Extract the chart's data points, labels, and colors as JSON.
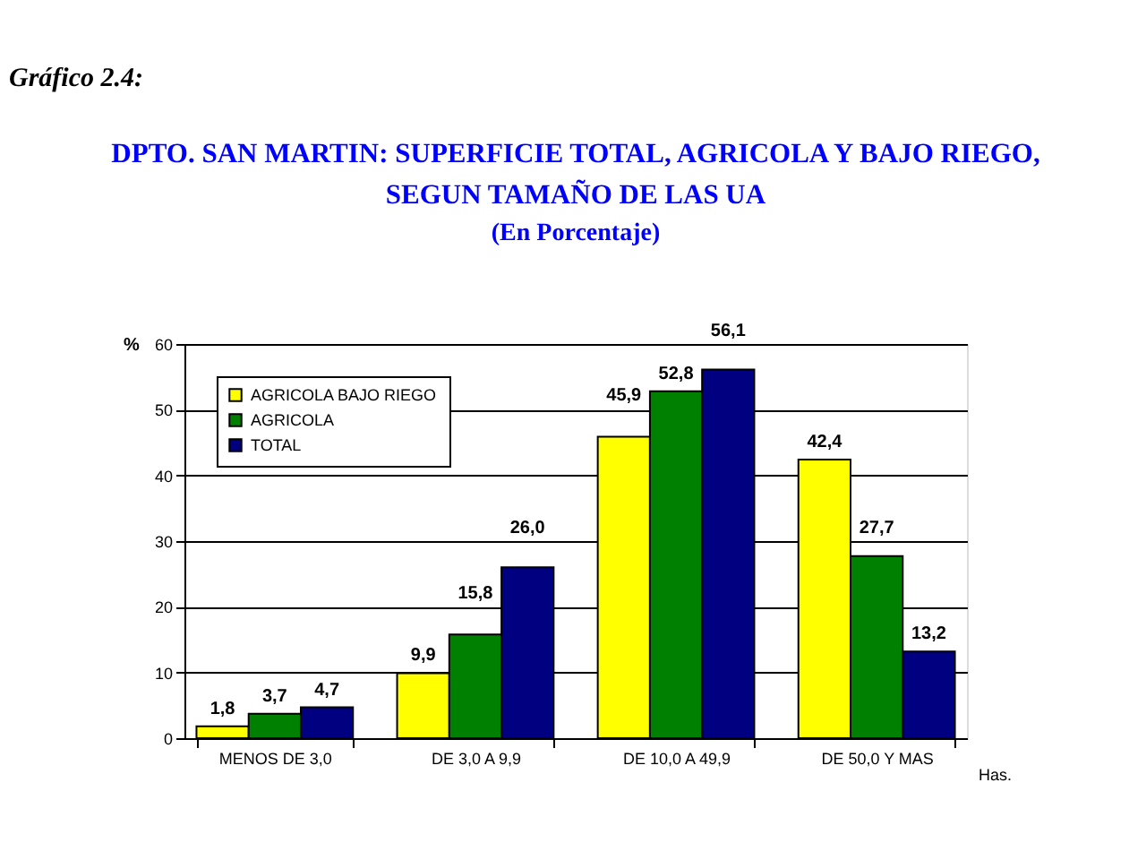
{
  "chart_data": {
    "type": "bar",
    "title": "DPTO. SAN MARTIN: SUPERFICIE TOTAL, AGRICOLA Y BAJO RIEGO, SEGUN TAMAÑO DE LAS UA",
    "subtitle": "(En Porcentaje)",
    "annotations": [
      "Gráfico 2.4:"
    ],
    "categories": [
      "MENOS DE 3,0",
      "DE 3,0 A 9,9",
      "DE 10,0 A 49,9",
      "DE 50,0 Y MAS"
    ],
    "series": [
      {
        "name": "AGRICOLA BAJO RIEGO",
        "color": "#ffff00",
        "values": [
          1.8,
          9.9,
          45.9,
          42.4
        ],
        "value_labels": [
          "1,8",
          "9,9",
          "45,9",
          "42,4"
        ]
      },
      {
        "name": "AGRICOLA",
        "color": "#008000",
        "values": [
          3.7,
          15.8,
          52.8,
          27.7
        ],
        "value_labels": [
          "3,7",
          "15,8",
          "52,8",
          "27,7"
        ]
      },
      {
        "name": "TOTAL",
        "color": "#000080",
        "values": [
          4.7,
          26.0,
          56.1,
          13.2
        ],
        "value_labels": [
          "4,7",
          "26,0",
          "56,1",
          "13,2"
        ]
      }
    ],
    "xlabel": "Has.",
    "ylabel": "%",
    "ylim": [
      0,
      60
    ],
    "yticks": [
      0,
      10,
      20,
      30,
      40,
      50,
      60
    ],
    "grid": "y",
    "legend": "top left"
  }
}
